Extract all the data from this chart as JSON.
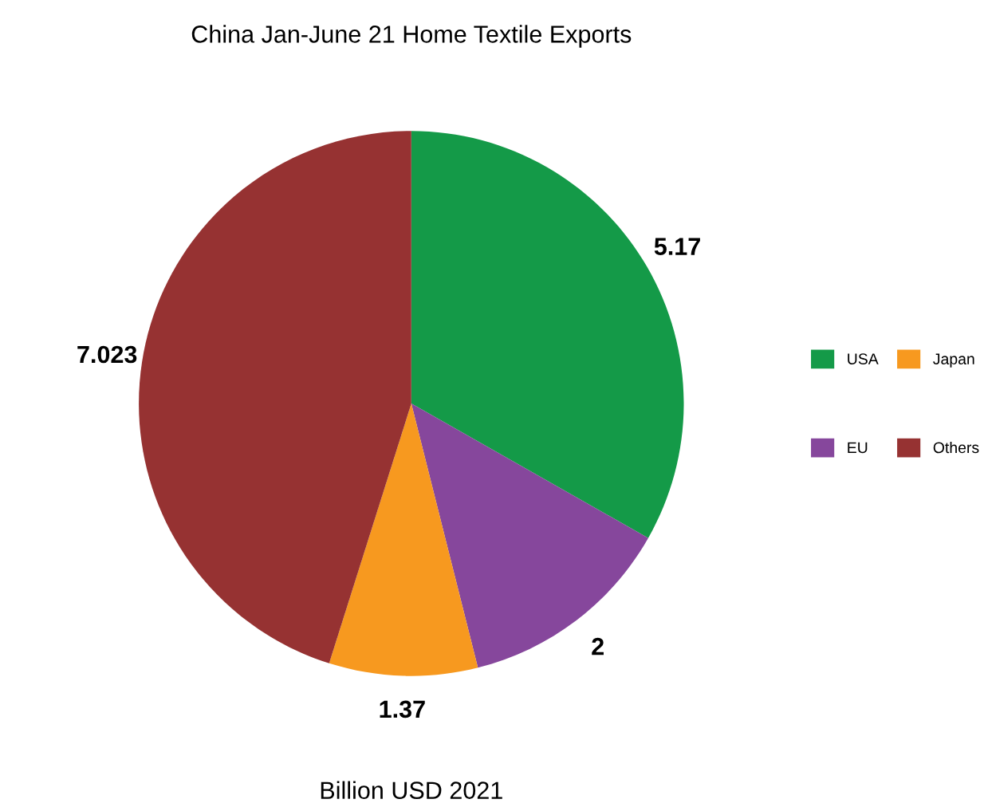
{
  "chart_data": {
    "type": "pie",
    "title": "China Jan-June 21 Home Textile Exports",
    "categories": [
      "USA",
      "EU",
      "Japan",
      "Others"
    ],
    "values": [
      5.17,
      2,
      1.37,
      7.023
    ],
    "colors": [
      "#149a48",
      "#86479c",
      "#f7991f",
      "#963232"
    ],
    "data_labels": true,
    "legend": "right",
    "annotations": [
      "Billion USD 2021"
    ]
  }
}
